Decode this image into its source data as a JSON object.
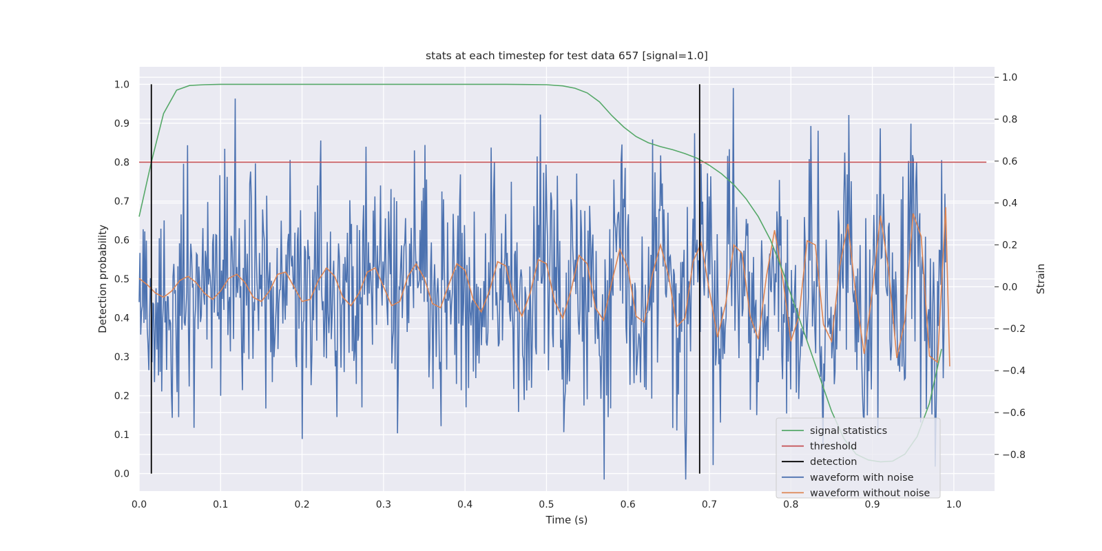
{
  "chart_data": {
    "type": "line",
    "title": "stats at each timestep for test data 657 [signal=1.0]",
    "xlabel": "Time (s)",
    "ylabel_left": "Detection probability",
    "ylabel_right": "Strain",
    "xlim": [
      0.0,
      1.05
    ],
    "ylim_left": [
      -0.045,
      1.045
    ],
    "ylim_right": [
      -0.975,
      1.05
    ],
    "xticks": [
      0.0,
      0.1,
      0.2,
      0.3,
      0.4,
      0.5,
      0.6,
      0.7,
      0.8,
      0.9,
      1.0
    ],
    "xtick_labels": [
      "0.0",
      "0.1",
      "0.2",
      "0.3",
      "0.4",
      "0.5",
      "0.6",
      "0.7",
      "0.8",
      "0.9",
      "1.0"
    ],
    "yticks_left": [
      0.0,
      0.1,
      0.2,
      0.3,
      0.4,
      0.5,
      0.6,
      0.7,
      0.8,
      0.9,
      1.0
    ],
    "ytick_labels_left": [
      "0.0",
      "0.1",
      "0.2",
      "0.3",
      "0.4",
      "0.5",
      "0.6",
      "0.7",
      "0.8",
      "0.9",
      "1.0"
    ],
    "yticks_right": [
      -0.8,
      -0.6,
      -0.4,
      -0.2,
      0.0,
      0.2,
      0.4,
      0.6,
      0.8,
      1.0
    ],
    "ytick_labels_right": [
      "−0.8",
      "−0.6",
      "−0.4",
      "−0.2",
      "0.0",
      "0.2",
      "0.4",
      "0.6",
      "0.8",
      "1.0"
    ],
    "grid": true,
    "legend_position": "lower-right",
    "background": "#eaeaf2",
    "series": [
      {
        "name": "signal statistics",
        "axis": "left",
        "color": "#55a868",
        "x": [
          0.0,
          0.015,
          0.03,
          0.046,
          0.062,
          0.08,
          0.1,
          0.2,
          0.3,
          0.4,
          0.45,
          0.5,
          0.52,
          0.535,
          0.55,
          0.565,
          0.58,
          0.595,
          0.61,
          0.625,
          0.64,
          0.655,
          0.67,
          0.685,
          0.7,
          0.715,
          0.73,
          0.745,
          0.76,
          0.775,
          0.79,
          0.805,
          0.82,
          0.835,
          0.85,
          0.865,
          0.88,
          0.895,
          0.91,
          0.925,
          0.94,
          0.955,
          0.97,
          0.985
        ],
        "y": [
          0.66,
          0.8,
          0.925,
          0.985,
          0.997,
          0.999,
          1.0,
          1.0,
          1.0,
          1.0,
          1.0,
          0.999,
          0.996,
          0.99,
          0.978,
          0.955,
          0.92,
          0.89,
          0.866,
          0.85,
          0.84,
          0.832,
          0.822,
          0.81,
          0.792,
          0.77,
          0.742,
          0.706,
          0.66,
          0.6,
          0.52,
          0.43,
          0.34,
          0.25,
          0.16,
          0.09,
          0.05,
          0.035,
          0.03,
          0.032,
          0.05,
          0.095,
          0.18,
          0.32
        ]
      },
      {
        "name": "threshold",
        "axis": "left",
        "color": "#c44e52",
        "x": [
          0.0,
          1.04
        ],
        "y": [
          0.8,
          0.8
        ]
      },
      {
        "name": "detection",
        "axis": "left",
        "color": "#000000",
        "lines_at_x": [
          0.015,
          0.688
        ],
        "y_from": 0.0,
        "y_to": 1.0
      },
      {
        "name": "waveform with noise",
        "axis": "right",
        "color": "#4c72b0",
        "x_start": 0.0,
        "x_end": 0.99,
        "n_points": 1000,
        "amplitude_std": 0.27
      },
      {
        "name": "waveform without noise",
        "axis": "right",
        "color": "#dd8452",
        "x": [
          0.0,
          0.01,
          0.02,
          0.03,
          0.04,
          0.05,
          0.06,
          0.07,
          0.08,
          0.09,
          0.1,
          0.11,
          0.12,
          0.13,
          0.14,
          0.15,
          0.16,
          0.17,
          0.18,
          0.19,
          0.2,
          0.21,
          0.22,
          0.23,
          0.24,
          0.25,
          0.26,
          0.27,
          0.28,
          0.29,
          0.3,
          0.31,
          0.32,
          0.33,
          0.34,
          0.35,
          0.36,
          0.37,
          0.38,
          0.39,
          0.4,
          0.41,
          0.42,
          0.43,
          0.44,
          0.45,
          0.46,
          0.47,
          0.48,
          0.49,
          0.5,
          0.51,
          0.52,
          0.53,
          0.54,
          0.55,
          0.56,
          0.57,
          0.58,
          0.59,
          0.6,
          0.61,
          0.62,
          0.63,
          0.64,
          0.65,
          0.66,
          0.67,
          0.68,
          0.69,
          0.7,
          0.71,
          0.72,
          0.73,
          0.74,
          0.75,
          0.76,
          0.77,
          0.78,
          0.79,
          0.8,
          0.81,
          0.82,
          0.83,
          0.84,
          0.85,
          0.86,
          0.87,
          0.88,
          0.89,
          0.9,
          0.91,
          0.92,
          0.93,
          0.94,
          0.95,
          0.96,
          0.97,
          0.98,
          0.99,
          0.995
        ],
        "y": [
          0.04,
          0.01,
          -0.03,
          -0.05,
          -0.02,
          0.03,
          0.05,
          0.02,
          -0.03,
          -0.06,
          -0.02,
          0.04,
          0.06,
          0.02,
          -0.05,
          -0.07,
          -0.02,
          0.06,
          0.07,
          0.0,
          -0.07,
          -0.06,
          0.03,
          0.09,
          0.05,
          -0.05,
          -0.09,
          -0.03,
          0.07,
          0.09,
          0.0,
          -0.09,
          -0.07,
          0.05,
          0.11,
          0.04,
          -0.08,
          -0.1,
          0.01,
          0.11,
          0.08,
          -0.06,
          -0.12,
          -0.02,
          0.12,
          0.1,
          -0.06,
          -0.14,
          -0.03,
          0.13,
          0.11,
          -0.07,
          -0.15,
          -0.02,
          0.15,
          0.11,
          -0.1,
          -0.16,
          0.02,
          0.18,
          0.09,
          -0.14,
          -0.17,
          0.06,
          0.2,
          0.05,
          -0.19,
          -0.15,
          0.12,
          0.21,
          -0.02,
          -0.24,
          -0.08,
          0.2,
          0.16,
          -0.14,
          -0.25,
          0.05,
          0.27,
          0.04,
          -0.26,
          -0.14,
          0.22,
          0.2,
          -0.18,
          -0.26,
          0.1,
          0.3,
          -0.05,
          -0.32,
          -0.02,
          0.34,
          0.08,
          -0.34,
          -0.16,
          0.35,
          0.24,
          -0.33,
          -0.36,
          0.38,
          -0.38
        ]
      }
    ]
  }
}
